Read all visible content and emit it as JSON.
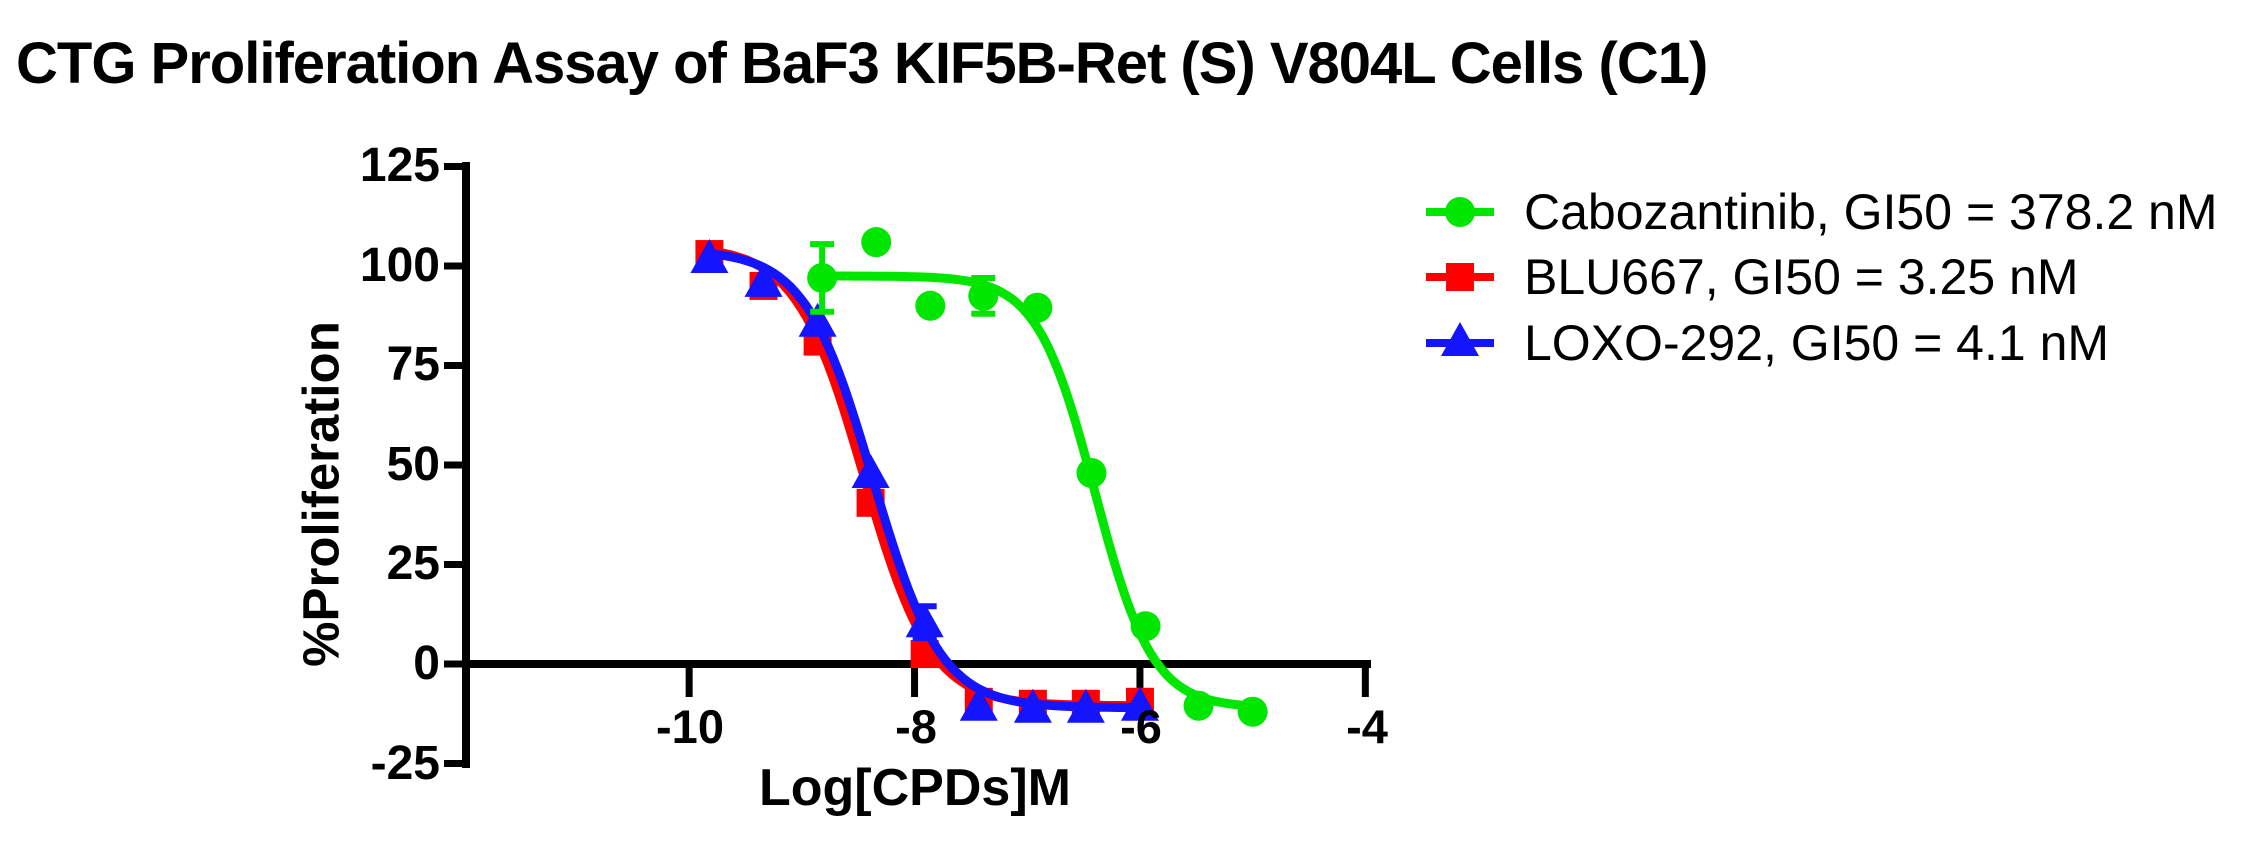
{
  "title": "CTG Proliferation Assay of BaF3 KIF5B-Ret (S) V804L Cells (C1)",
  "colors": {
    "cabozantinib": "#00e600",
    "blu667": "#ff0000",
    "loxo292": "#1414ff",
    "axis": "#000000"
  },
  "chart_data": {
    "type": "scatter",
    "subtype": "dose-response-curves",
    "title": "CTG Proliferation Assay of BaF3 KIF5B-Ret (S) V804L Cells (C1)",
    "xlabel": "Log[CPDs]M",
    "ylabel": "%Proliferation",
    "xlim": [
      -11.98,
      -3.94
    ],
    "ylim": [
      -25,
      125
    ],
    "grid": false,
    "legend_position": "right-top",
    "x_ticks": [
      {
        "value": -10,
        "label": "-10"
      },
      {
        "value": -8,
        "label": "-8"
      },
      {
        "value": -6,
        "label": "-6"
      },
      {
        "value": -4,
        "label": "-4"
      }
    ],
    "y_ticks": [
      {
        "value": 125,
        "label": "125"
      },
      {
        "value": 100,
        "label": "100"
      },
      {
        "value": 75,
        "label": "75"
      },
      {
        "value": 50,
        "label": "50"
      },
      {
        "value": 25,
        "label": "25"
      },
      {
        "value": 0,
        "label": "0"
      },
      {
        "value": -25,
        "label": "-25"
      }
    ],
    "series": [
      {
        "name": "Cabozantinib",
        "legend_label": "Cabozantinib, GI50 = 378.2 nM",
        "gi50_nM": 378.2,
        "marker": "circle",
        "color": "#00e600",
        "x": [
          -8.82,
          -8.34,
          -7.86,
          -7.39,
          -6.91,
          -6.43,
          -5.95,
          -5.48,
          -5.0
        ],
        "y": [
          97,
          106,
          90,
          92.5,
          89.5,
          48,
          9.5,
          -10.5,
          -12
        ],
        "yerr": [
          8.5,
          0,
          0,
          4.5,
          0,
          0,
          0,
          0,
          0
        ],
        "fit": {
          "top": 97.5,
          "bottom": -11,
          "logec50": -6.4,
          "hill": -1.7,
          "range": [
            -8.82,
            -5.0
          ]
        }
      },
      {
        "name": "BLU667",
        "legend_label": "BLU667, GI50 = 3.25 nM",
        "gi50_nM": 3.25,
        "marker": "square",
        "color": "#ff0000",
        "x": [
          -9.82,
          -9.34,
          -8.86,
          -8.39,
          -7.91,
          -7.43,
          -6.95,
          -6.48,
          -6.0
        ],
        "y": [
          103,
          95,
          81,
          40.5,
          2.5,
          -9.5,
          -10,
          -10,
          -9.5
        ],
        "yerr": [
          0,
          0,
          0,
          0,
          0,
          0,
          0,
          0,
          0
        ],
        "fit": {
          "top": 105,
          "bottom": -10.5,
          "logec50": -8.45,
          "hill": -1.45,
          "range": [
            -9.82,
            -6.0
          ]
        }
      },
      {
        "name": "LOXO-292",
        "legend_label": "LOXO-292, GI50 = 4.1 nM",
        "gi50_nM": 4.1,
        "marker": "triangle",
        "color": "#1414ff",
        "x": [
          -9.82,
          -9.34,
          -8.86,
          -8.39,
          -7.91,
          -7.43,
          -6.95,
          -6.48,
          -6.0
        ],
        "y": [
          102,
          96,
          86,
          48,
          10.5,
          -10.5,
          -11,
          -11,
          -10.5
        ],
        "yerr": [
          0,
          0,
          0,
          0,
          4,
          0,
          0,
          0,
          0
        ],
        "fit": {
          "top": 104,
          "bottom": -11,
          "logec50": -8.37,
          "hill": -1.45,
          "range": [
            -9.82,
            -6.0
          ]
        }
      }
    ]
  }
}
